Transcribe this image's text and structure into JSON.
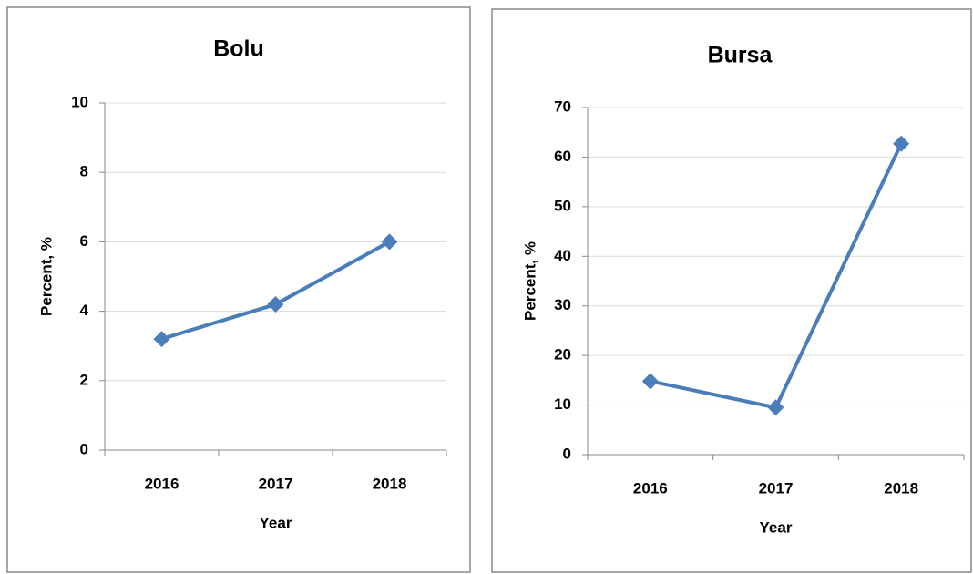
{
  "chart_data": [
    {
      "type": "line",
      "title": "Bolu",
      "x_label": "Year",
      "y_label": "Percent, %",
      "categories": [
        "2016",
        "2017",
        "2018"
      ],
      "series": [
        {
          "name": "Bolu",
          "color": "#4a7ebb",
          "values": [
            3.2,
            4.2,
            6.0
          ]
        }
      ],
      "ylim": [
        0,
        10
      ],
      "yticks": [
        0,
        2,
        4,
        6,
        8,
        10
      ],
      "grid": true
    },
    {
      "type": "line",
      "title": "Bursa",
      "x_label": "Year",
      "y_label": "Percent, %",
      "categories": [
        "2016",
        "2017",
        "2018"
      ],
      "series": [
        {
          "name": "Bursa",
          "color": "#4a7ebb",
          "values": [
            14.8,
            9.5,
            62.7
          ]
        }
      ],
      "ylim": [
        0,
        70
      ],
      "yticks": [
        0,
        10,
        20,
        30,
        40,
        50,
        60,
        70
      ],
      "grid": true
    }
  ]
}
